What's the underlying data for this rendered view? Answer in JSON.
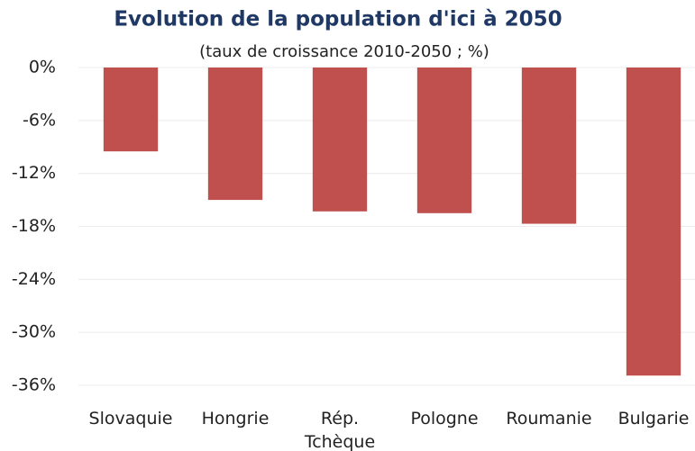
{
  "chart_data": {
    "type": "bar",
    "title": "Evolution de la population d'ici à 2050",
    "subtitle": "(taux de croissance 2010-2050 ; %)",
    "categories": [
      "Slovaquie",
      "Hongrie",
      "Rép. Tchèque",
      "Pologne",
      "Roumanie",
      "Bulgarie"
    ],
    "values": [
      -9.5,
      -15.0,
      -16.3,
      -16.5,
      -17.7,
      -34.9
    ],
    "color": "#c0504d",
    "ylim": [
      -36,
      0
    ],
    "yticks": [
      {
        "value": 0,
        "label": "0%"
      },
      {
        "value": -6,
        "label": "-6%"
      },
      {
        "value": -12,
        "label": "-12%"
      },
      {
        "value": -18,
        "label": "-18%"
      },
      {
        "value": -24,
        "label": "-24%"
      },
      {
        "value": -30,
        "label": "-30%"
      },
      {
        "value": -36,
        "label": "-36%"
      }
    ],
    "grid": true
  }
}
